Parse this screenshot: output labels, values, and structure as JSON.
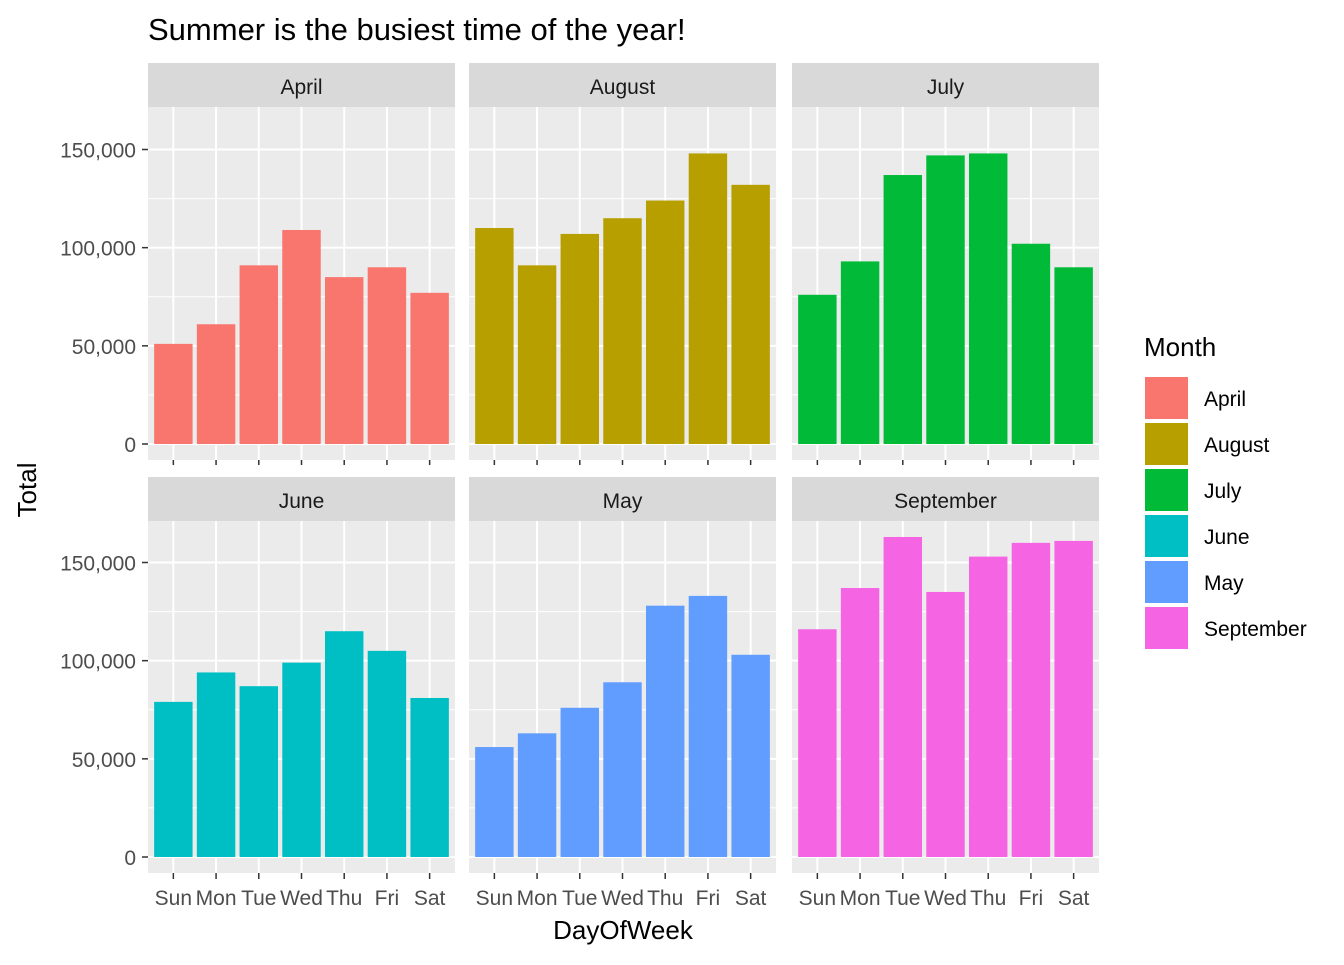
{
  "chart_data": {
    "type": "bar",
    "title": "Summer is the busiest time of the year!",
    "xlabel": "DayOfWeek",
    "ylabel": "Total",
    "categories": [
      "Sun",
      "Mon",
      "Tue",
      "Wed",
      "Thu",
      "Fri",
      "Sat"
    ],
    "ylim": [
      0,
      180000
    ],
    "yticks": [
      0,
      50000,
      100000,
      150000
    ],
    "ytick_labels": [
      "0",
      "50,000",
      "100,000",
      "150,000"
    ],
    "grid": true,
    "legend": {
      "title": "Month",
      "position": "right",
      "entries": [
        "April",
        "August",
        "July",
        "June",
        "May",
        "September"
      ]
    },
    "facets": [
      {
        "name": "April",
        "color": "#F8766D",
        "values": [
          51000,
          61000,
          91000,
          109000,
          85000,
          90000,
          77000
        ]
      },
      {
        "name": "August",
        "color": "#B79F00",
        "values": [
          110000,
          91000,
          107000,
          115000,
          124000,
          148000,
          132000
        ]
      },
      {
        "name": "July",
        "color": "#00BA38",
        "values": [
          76000,
          93000,
          137000,
          147000,
          148000,
          102000,
          90000
        ]
      },
      {
        "name": "June",
        "color": "#00BFC4",
        "values": [
          79000,
          94000,
          87000,
          99000,
          115000,
          105000,
          81000
        ]
      },
      {
        "name": "May",
        "color": "#619CFF",
        "values": [
          56000,
          63000,
          76000,
          89000,
          128000,
          133000,
          103000
        ]
      },
      {
        "name": "September",
        "color": "#F564E3",
        "values": [
          116000,
          137000,
          163000,
          135000,
          153000,
          160000,
          161000
        ]
      }
    ]
  }
}
